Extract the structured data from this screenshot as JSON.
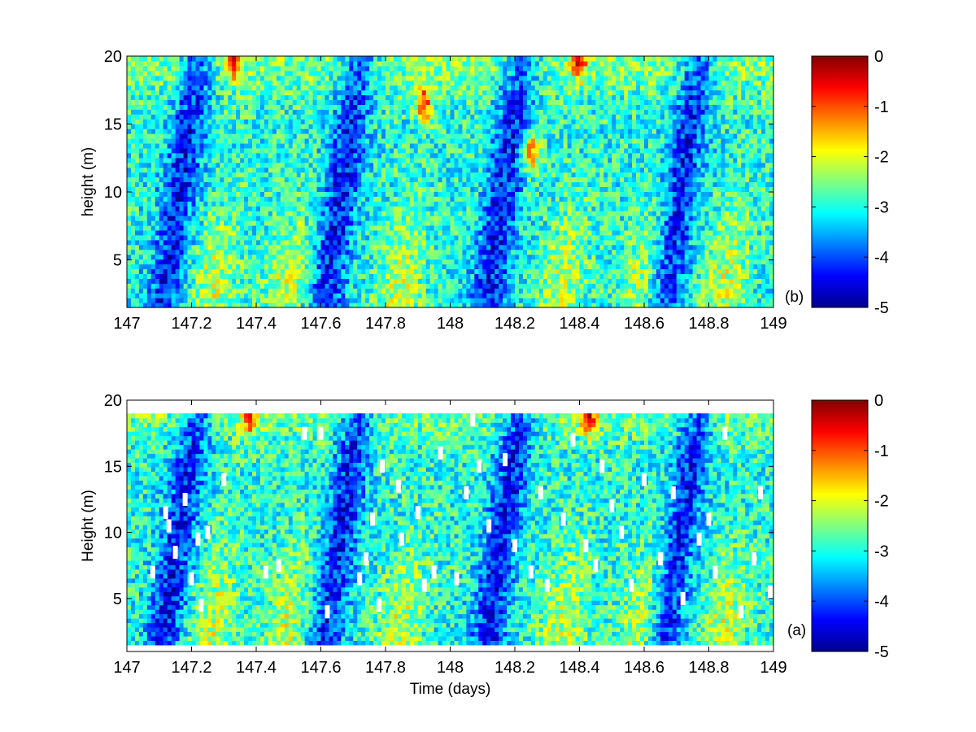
{
  "chart_data": [
    {
      "type": "heatmap",
      "panel_label": "(b)",
      "xlabel": "",
      "ylabel": "height (m)",
      "xlim": [
        147,
        149
      ],
      "ylim": [
        1.5,
        20
      ],
      "xticks": [
        147,
        147.2,
        147.4,
        147.6,
        147.8,
        148,
        148.2,
        148.4,
        148.6,
        148.8,
        149
      ],
      "xtick_labels": [
        "147",
        "147.2",
        "147.4",
        "147.6",
        "147.8",
        "148",
        "148.2",
        "148.4",
        "148.6",
        "148.8",
        "149"
      ],
      "yticks": [
        5,
        10,
        15,
        20
      ],
      "ytick_labels": [
        "5",
        "10",
        "15",
        "20"
      ],
      "data_top_height": 20,
      "clim": [
        -5,
        0
      ],
      "colorbar_ticks": [
        0,
        -1,
        -2,
        -3,
        -4,
        -5
      ],
      "colorbar_tick_labels": [
        "0",
        "-1",
        "-2",
        "-3",
        "-4",
        "-5"
      ],
      "colormap": "jet",
      "description_pattern": {
        "low_band_centers_days": [
          147.15,
          147.65,
          148.15,
          148.7
        ],
        "high_blob_locations": [
          [
            147.33,
            19.8
          ],
          [
            147.92,
            16.5
          ],
          [
            148.25,
            13
          ],
          [
            148.4,
            19.8
          ]
        ]
      },
      "gaps": []
    },
    {
      "type": "heatmap",
      "panel_label": "(a)",
      "xlabel": "Time (days)",
      "ylabel": "Height (m)",
      "xlim": [
        147,
        149
      ],
      "ylim": [
        1,
        20
      ],
      "xticks": [
        147,
        147.2,
        147.4,
        147.6,
        147.8,
        148,
        148.2,
        148.4,
        148.6,
        148.8,
        149
      ],
      "xtick_labels": [
        "147",
        "147.2",
        "147.4",
        "147.6",
        "147.8",
        "148",
        "148.2",
        "148.4",
        "148.6",
        "148.8",
        "149"
      ],
      "yticks": [
        5,
        10,
        15,
        20
      ],
      "ytick_labels": [
        "5",
        "10",
        "15",
        "20"
      ],
      "data_top_height": 19,
      "data_bottom_height": 1.5,
      "clim": [
        -5,
        0
      ],
      "colorbar_ticks": [
        0,
        -1,
        -2,
        -3,
        -4,
        -5
      ],
      "colorbar_tick_labels": [
        "0",
        "-1",
        "-2",
        "-3",
        "-4",
        "-5"
      ],
      "colormap": "jet",
      "description_pattern": {
        "low_band_centers_days": [
          147.15,
          147.65,
          148.15,
          148.7
        ],
        "high_blob_locations": [
          [
            147.38,
            18.8
          ],
          [
            148.43,
            18.8
          ]
        ]
      },
      "gaps": [
        [
          147.08,
          7.0
        ],
        [
          147.12,
          11.5
        ],
        [
          147.13,
          10.5
        ],
        [
          147.15,
          8.5
        ],
        [
          147.18,
          12.5
        ],
        [
          147.2,
          6.5
        ],
        [
          147.22,
          9.5
        ],
        [
          147.23,
          4.5
        ],
        [
          147.25,
          10.0
        ],
        [
          147.3,
          14.0
        ],
        [
          147.43,
          7.0
        ],
        [
          147.47,
          7.5
        ],
        [
          147.55,
          17.5
        ],
        [
          147.6,
          17.5
        ],
        [
          147.62,
          4.0
        ],
        [
          147.72,
          6.5
        ],
        [
          147.74,
          8.0
        ],
        [
          147.76,
          11.0
        ],
        [
          147.78,
          4.5
        ],
        [
          147.79,
          15.0
        ],
        [
          147.84,
          13.5
        ],
        [
          147.85,
          9.5
        ],
        [
          147.9,
          11.5
        ],
        [
          147.92,
          6.0
        ],
        [
          147.95,
          7.0
        ],
        [
          147.97,
          16.0
        ],
        [
          148.02,
          6.5
        ],
        [
          148.05,
          13.0
        ],
        [
          148.07,
          18.5
        ],
        [
          148.09,
          15.0
        ],
        [
          148.12,
          10.5
        ],
        [
          148.17,
          15.5
        ],
        [
          148.2,
          9.0
        ],
        [
          148.25,
          7.0
        ],
        [
          148.28,
          13.0
        ],
        [
          148.3,
          6.0
        ],
        [
          148.35,
          11.0
        ],
        [
          148.38,
          17.0
        ],
        [
          148.42,
          9.0
        ],
        [
          148.45,
          7.5
        ],
        [
          148.47,
          15.0
        ],
        [
          148.5,
          12.0
        ],
        [
          148.53,
          10.0
        ],
        [
          148.56,
          6.0
        ],
        [
          148.6,
          14.0
        ],
        [
          148.65,
          8.0
        ],
        [
          148.69,
          13.0
        ],
        [
          148.72,
          5.0
        ],
        [
          148.77,
          9.5
        ],
        [
          148.8,
          11.0
        ],
        [
          148.82,
          7.0
        ],
        [
          148.85,
          17.5
        ],
        [
          148.9,
          4.0
        ],
        [
          148.94,
          8.0
        ],
        [
          148.96,
          13.0
        ],
        [
          148.99,
          5.5
        ]
      ]
    }
  ]
}
